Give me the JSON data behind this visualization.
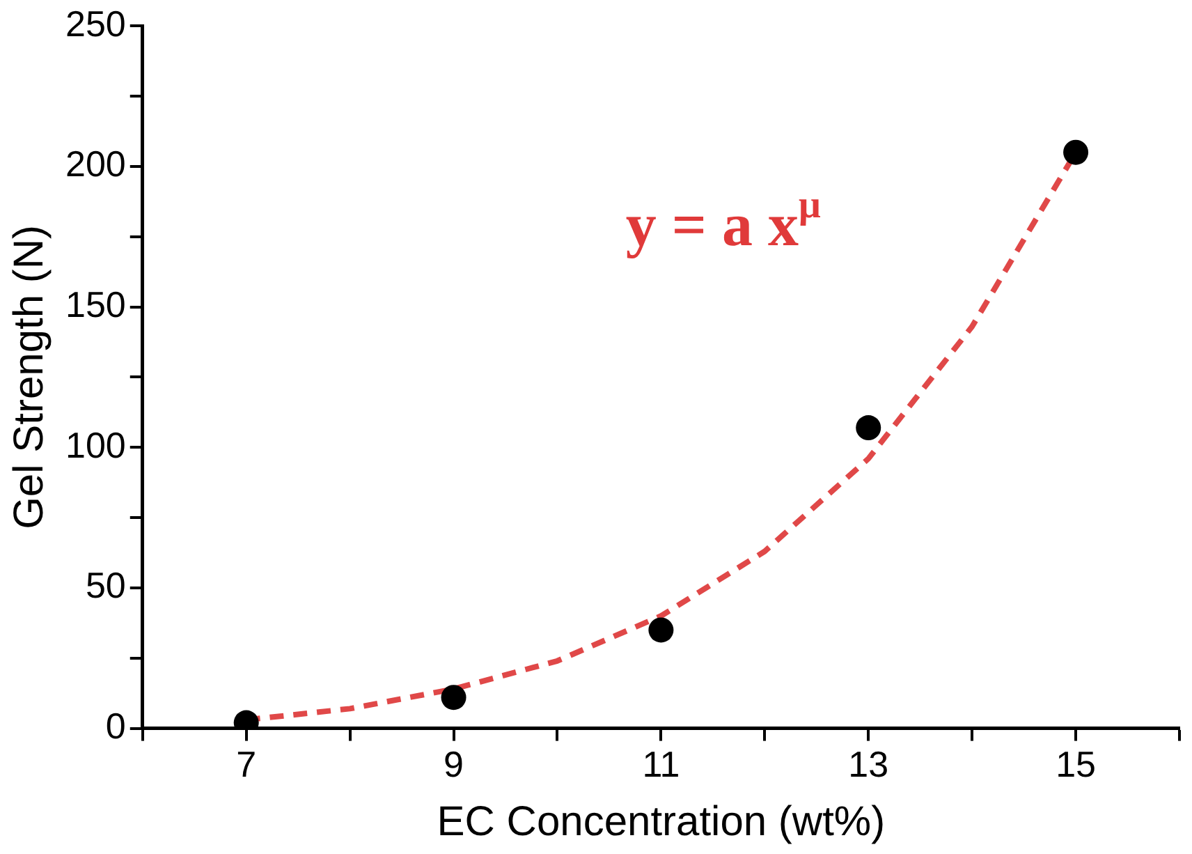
{
  "chart_data": {
    "type": "scatter",
    "xlabel": "EC Concentration (wt%)",
    "ylabel": "Gel Strength (N)",
    "xlim": [
      6,
      16
    ],
    "xticks": [
      {
        "value": 6,
        "label": null
      },
      7,
      {
        "value": 8,
        "label": null
      },
      9,
      {
        "value": 10,
        "label": null
      },
      11,
      {
        "value": 12,
        "label": null
      },
      13,
      {
        "value": 14,
        "label": null
      },
      15,
      {
        "value": 16,
        "label": null
      }
    ],
    "ylim": [
      0,
      250
    ],
    "yticks": [
      0,
      {
        "value": 25,
        "label": null
      },
      50,
      {
        "value": 75,
        "label": null
      },
      100,
      {
        "value": 125,
        "label": null
      },
      150,
      {
        "value": 175,
        "label": null
      },
      200,
      {
        "value": 225,
        "label": null
      },
      250
    ],
    "grid": false,
    "legend": false,
    "marker": "circle",
    "series": [
      {
        "type": "line",
        "color": "#e04848",
        "line_style": "dashed",
        "marker": "none",
        "x": [
          7,
          8,
          9,
          10,
          11,
          12,
          13,
          14,
          15
        ],
        "values": [
          3,
          7,
          14,
          24,
          40,
          63,
          96,
          143,
          205
        ]
      },
      {
        "type": "scatter",
        "color": "#000000",
        "x": [
          7,
          9,
          11,
          13,
          15
        ],
        "values": [
          2,
          11,
          35,
          107,
          205
        ]
      }
    ],
    "annotations": [
      "y = a x$^{μ}$"
    ]
  }
}
